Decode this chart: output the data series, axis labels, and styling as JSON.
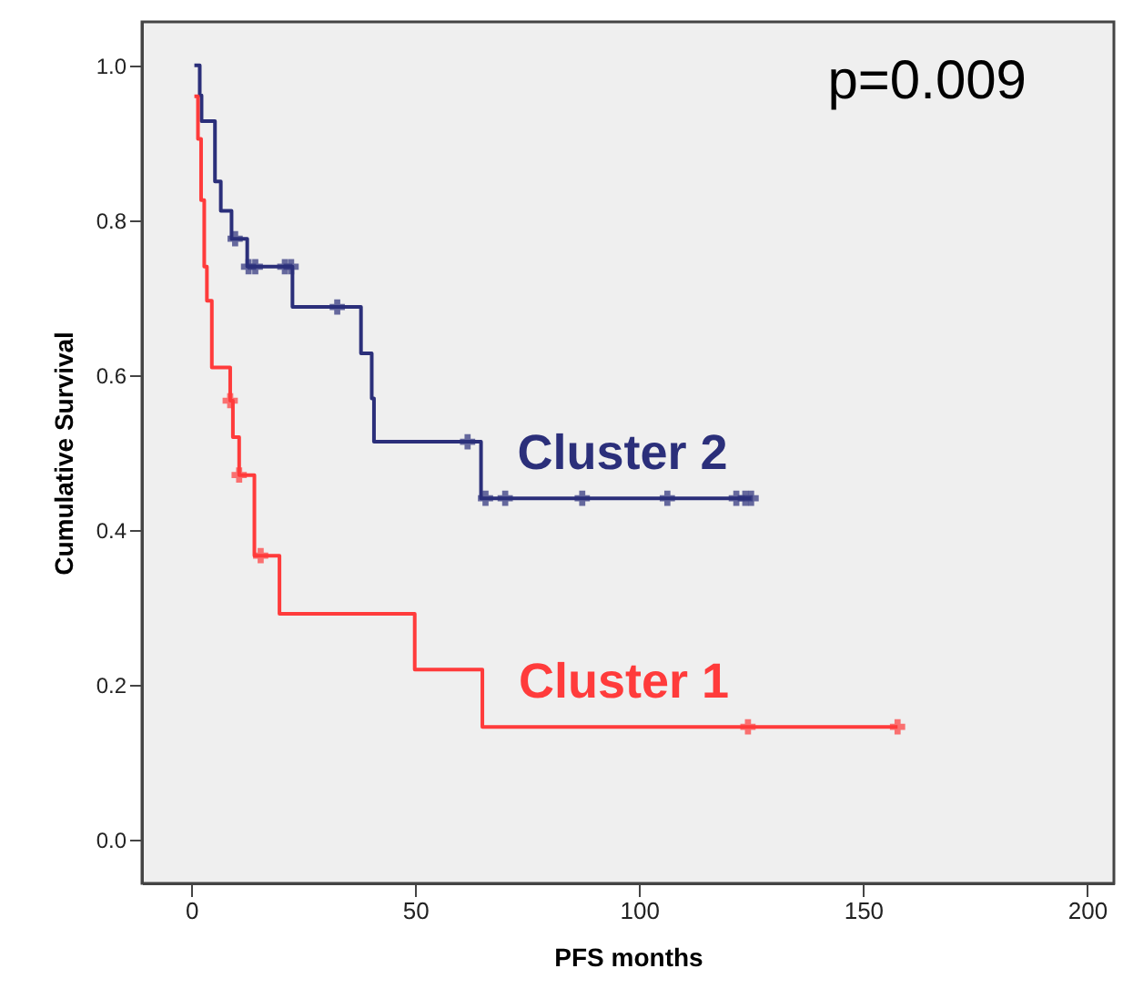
{
  "chart_data": {
    "type": "step",
    "xlabel": "PFS months",
    "ylabel": "Cumulative Survival",
    "xlim": [
      -11,
      206
    ],
    "ylim": [
      -0.056,
      1.056
    ],
    "xticks": [
      0,
      50,
      100,
      150,
      200
    ],
    "yticks": [
      {
        "value": 0,
        "label": "0.0"
      },
      {
        "value": 0.2,
        "label": "0.2"
      },
      {
        "value": 0.4,
        "label": "0.4"
      },
      {
        "value": 0.6,
        "label": "0.6"
      },
      {
        "value": 0.8,
        "label": "0.8"
      },
      {
        "value": 1,
        "label": "1.0"
      }
    ],
    "grid": false,
    "line_style": "solid",
    "annotations": [
      "p=0.009"
    ],
    "series": [
      {
        "name": "Cluster 2",
        "color": "#2b2f7a",
        "marker": "none",
        "x": [
          0.7,
          1.9,
          2.3,
          5.3,
          6.6,
          9,
          12.5,
          22.6,
          37.9,
          40.3,
          40.8,
          64.7,
          125
        ],
        "values": [
          1.0,
          0.961,
          0.928,
          0.85,
          0.812,
          0.776,
          0.74,
          0.688,
          0.628,
          0.57,
          0.514,
          0.441,
          0.441
        ]
      },
      {
        "type": "scatter",
        "color": "#2b2f7a",
        "marker": "cross",
        "x": [
          9.8,
          12.8,
          14.3,
          20.9,
          22.3,
          32.6,
          61.7,
          65.7,
          70.1,
          87.3,
          106.3,
          121.7,
          123.7,
          125
        ],
        "values": [
          0.776,
          0.74,
          0.74,
          0.74,
          0.74,
          0.688,
          0.514,
          0.441,
          0.441,
          0.441,
          0.441,
          0.441,
          0.441,
          0.441
        ]
      },
      {
        "name": "Cluster 1",
        "color": "#ff3b3b",
        "marker": "none",
        "x": [
          0.7,
          1.5,
          2.2,
          2.9,
          3.5,
          4.6,
          8.7,
          9.3,
          10.7,
          14.1,
          19.7,
          49.9,
          65,
          157.7
        ],
        "values": [
          0.96,
          0.905,
          0.826,
          0.74,
          0.696,
          0.61,
          0.567,
          0.52,
          0.471,
          0.367,
          0.292,
          0.22,
          0.146,
          0.146
        ]
      },
      {
        "type": "scatter",
        "color": "#ff3b3b",
        "marker": "cross",
        "x": [
          8.7,
          10.7,
          15.5,
          124.3,
          157.7
        ],
        "values": [
          0.567,
          0.471,
          0.367,
          0.146,
          0.146
        ]
      }
    ]
  }
}
